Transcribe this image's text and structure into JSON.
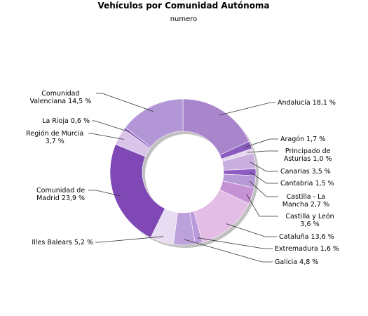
{
  "chart_data": {
    "type": "donut",
    "title": "Vehículos por Comunidad Autónoma",
    "subtitle": "numero",
    "slices": [
      {
        "name": "Andalucía",
        "value": 18.1,
        "label": [
          "Andalucía 18,1 %"
        ],
        "color": "#a985cc"
      },
      {
        "name": "Aragón",
        "value": 1.7,
        "label": [
          "Aragón 1,7 %"
        ],
        "color": "#8a5bbf"
      },
      {
        "name": "Principado de Asturias",
        "value": 1.0,
        "label": [
          "Principado de",
          "Asturias 1,0 %"
        ],
        "color": "#e6d6f0"
      },
      {
        "name": "Canarias",
        "value": 3.5,
        "label": [
          "Canarias 3,5 %"
        ],
        "color": "#c9aee0"
      },
      {
        "name": "Cantabria",
        "value": 1.5,
        "label": [
          "Cantabria 1,5 %"
        ],
        "color": "#8e5cc2"
      },
      {
        "name": "Castilla - La Mancha",
        "value": 2.7,
        "label": [
          "Castilla - La",
          "Mancha 2,7 %"
        ],
        "color": "#b59ad6"
      },
      {
        "name": "Castilla y León",
        "value": 3.6,
        "label": [
          "Castilla y León",
          "3,6 %"
        ],
        "color": "#c592d4"
      },
      {
        "name": "Cataluña",
        "value": 13.6,
        "label": [
          "Cataluña 13,6 %"
        ],
        "color": "#e4bde6"
      },
      {
        "name": "Extremadura",
        "value": 1.6,
        "label": [
          "Extremadura 1,6 %"
        ],
        "color": "#ba9adb"
      },
      {
        "name": "Galicia",
        "value": 4.8,
        "label": [
          "Galicia 4,8 %"
        ],
        "color": "#bda1dc"
      },
      {
        "name": "Illes Balears",
        "value": 5.2,
        "label": [
          "Illes Balears 5,2 %"
        ],
        "color": "#e8dcf2"
      },
      {
        "name": "Comunidad de Madrid",
        "value": 23.9,
        "label": [
          "Comunidad de",
          "Madrid 23,9 %"
        ],
        "color": "#7f48b5"
      },
      {
        "name": "Región de Murcia",
        "value": 3.7,
        "label": [
          "Región de Murcia",
          "3,7 %"
        ],
        "color": "#dac4ea"
      },
      {
        "name": "La Rioja",
        "value": 0.6,
        "label": [
          "La Rioja 0,6 %"
        ],
        "color": "#9a6ec7"
      },
      {
        "name": "Comunidad Valenciana",
        "value": 14.5,
        "label": [
          "Comunidad",
          "Valenciana 14,5 %"
        ],
        "color": "#b296d6"
      }
    ]
  }
}
